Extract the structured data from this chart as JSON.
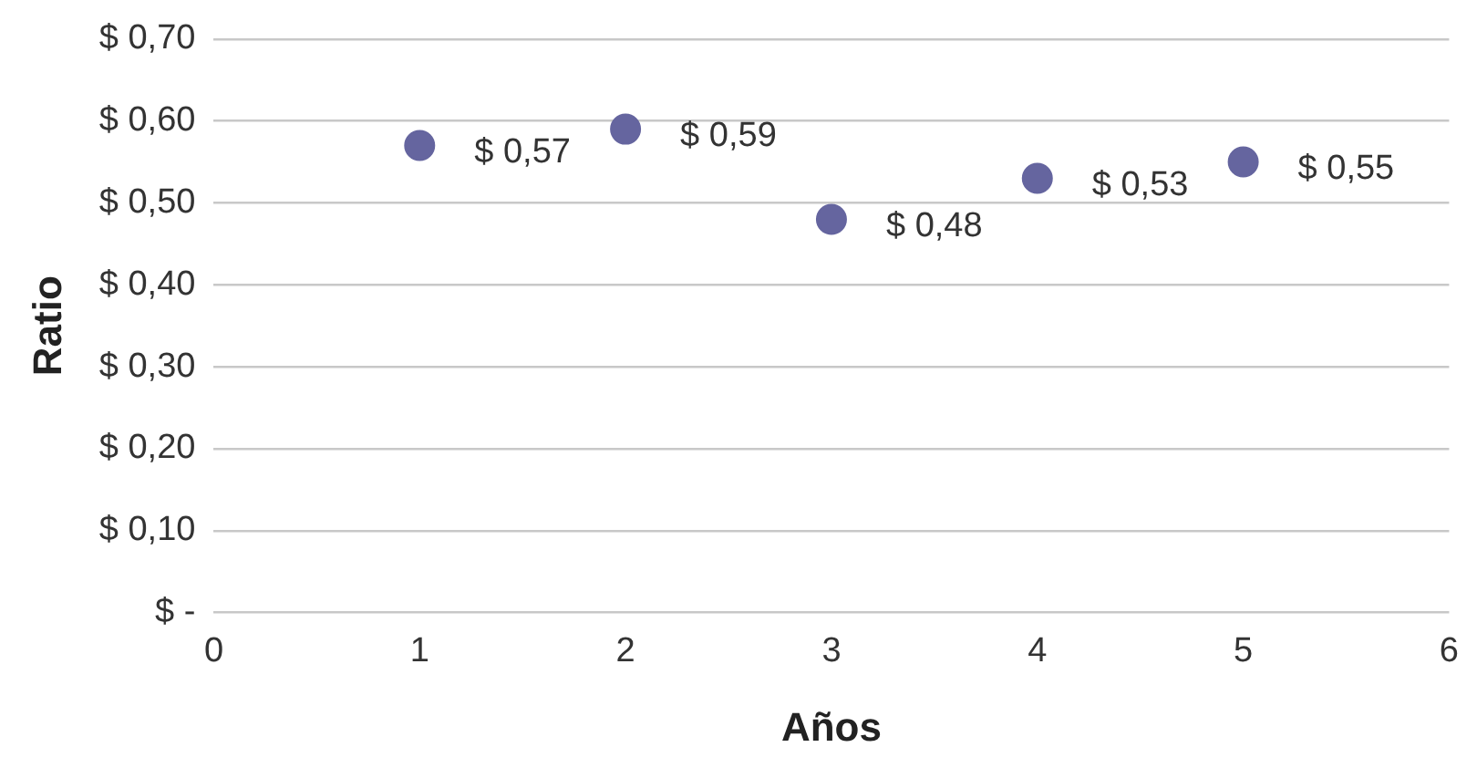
{
  "chart_data": {
    "type": "scatter",
    "xlabel": "Años",
    "ylabel": "Ratio",
    "x": [
      1,
      2,
      3,
      4,
      5
    ],
    "series": [
      {
        "color": "#65659f",
        "values": [
          0.57,
          0.59,
          0.48,
          0.53,
          0.55
        ],
        "value_labels": [
          "$ 0,57",
          "$ 0,59",
          "$ 0,48",
          "$ 0,53",
          "$ 0,55"
        ]
      }
    ],
    "xlim": [
      0,
      6
    ],
    "xticks": [
      0,
      1,
      2,
      3,
      4,
      5,
      6
    ],
    "ylim": [
      0,
      0.7
    ],
    "yticks": [
      {
        "value": 0,
        "label": "$ -"
      },
      {
        "value": 0.1,
        "label": "$ 0,10"
      },
      {
        "value": 0.2,
        "label": "$ 0,20"
      },
      {
        "value": 0.3,
        "label": "$ 0,30"
      },
      {
        "value": 0.4,
        "label": "$ 0,40"
      },
      {
        "value": 0.5,
        "label": "$ 0,50"
      },
      {
        "value": 0.6,
        "label": "$ 0,60"
      },
      {
        "value": 0.7,
        "label": "$ 0,70"
      }
    ],
    "grid": "y",
    "legend": false,
    "marker": "circle"
  }
}
